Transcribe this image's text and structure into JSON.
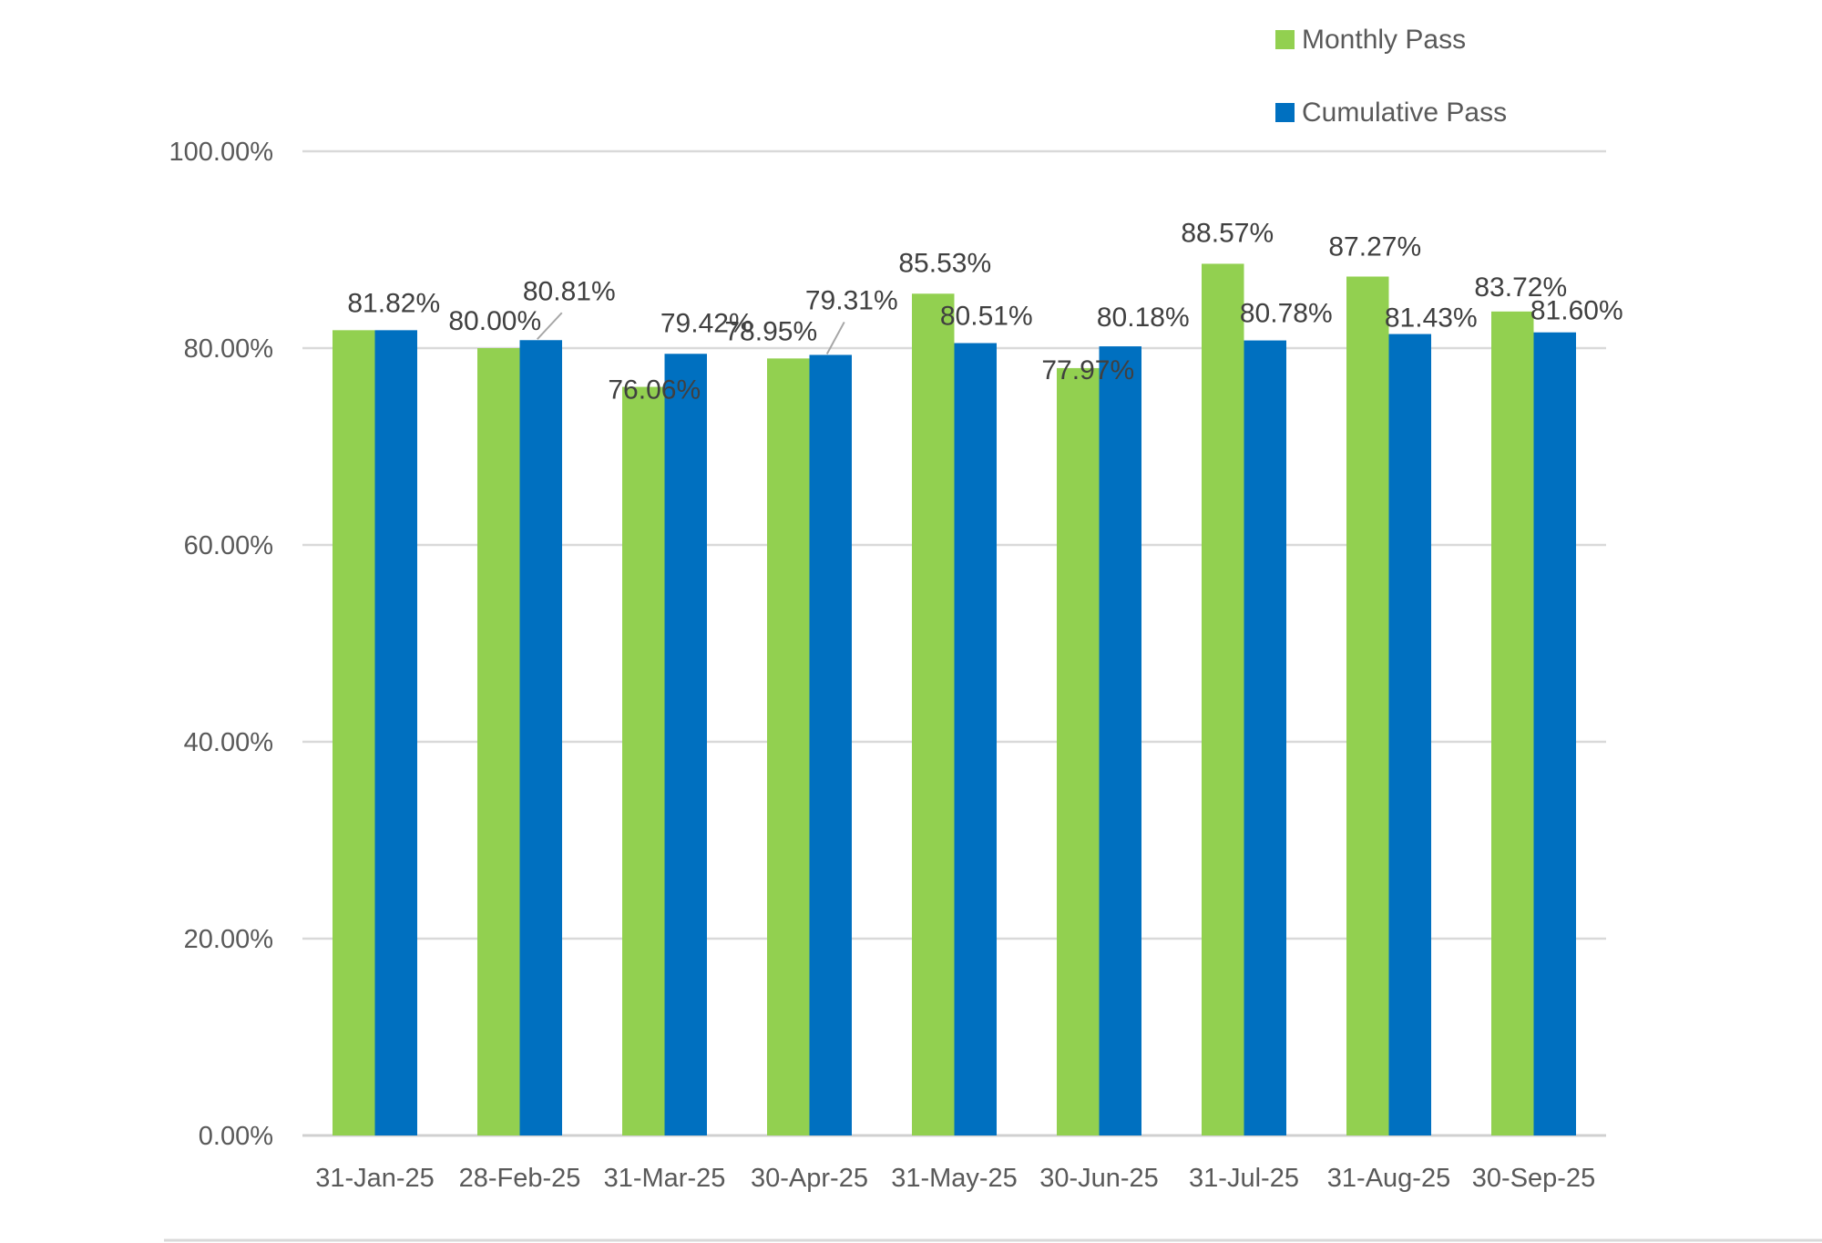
{
  "chart_data": {
    "type": "bar",
    "title": "",
    "xlabel": "",
    "ylabel": "",
    "categories": [
      "31-Jan-25",
      "28-Feb-25",
      "31-Mar-25",
      "30-Apr-25",
      "31-May-25",
      "30-Jun-25",
      "31-Jul-25",
      "31-Aug-25",
      "30-Sep-25"
    ],
    "series": [
      {
        "name": "Monthly Pass",
        "color": "#92d050",
        "values": [
          81.82,
          80.0,
          76.06,
          78.95,
          85.53,
          77.97,
          88.57,
          87.27,
          83.72
        ],
        "labels": [
          "81.82%",
          "80.00%",
          "76.06%",
          "78.95%",
          "85.53%",
          "77.97%",
          "88.57%",
          "87.27%",
          "83.72%"
        ]
      },
      {
        "name": "Cumulative Pass",
        "color": "#0070c0",
        "values": [
          81.82,
          80.81,
          79.42,
          79.31,
          80.51,
          80.18,
          80.78,
          81.43,
          81.6
        ],
        "labels": [
          "",
          "80.81%",
          "79.42%",
          "79.31%",
          "80.51%",
          "80.18%",
          "80.78%",
          "81.43%",
          "81.60%"
        ]
      }
    ],
    "ylim": [
      0,
      100
    ],
    "yticks": [
      0,
      20,
      40,
      60,
      80,
      100
    ],
    "ytick_labels": [
      "0.00%",
      "20.00%",
      "40.00%",
      "60.00%",
      "80.00%",
      "100.00%"
    ],
    "grid": true,
    "legend": {
      "placement": "top-right",
      "entries": [
        "Monthly Pass",
        "Cumulative Pass"
      ]
    }
  }
}
